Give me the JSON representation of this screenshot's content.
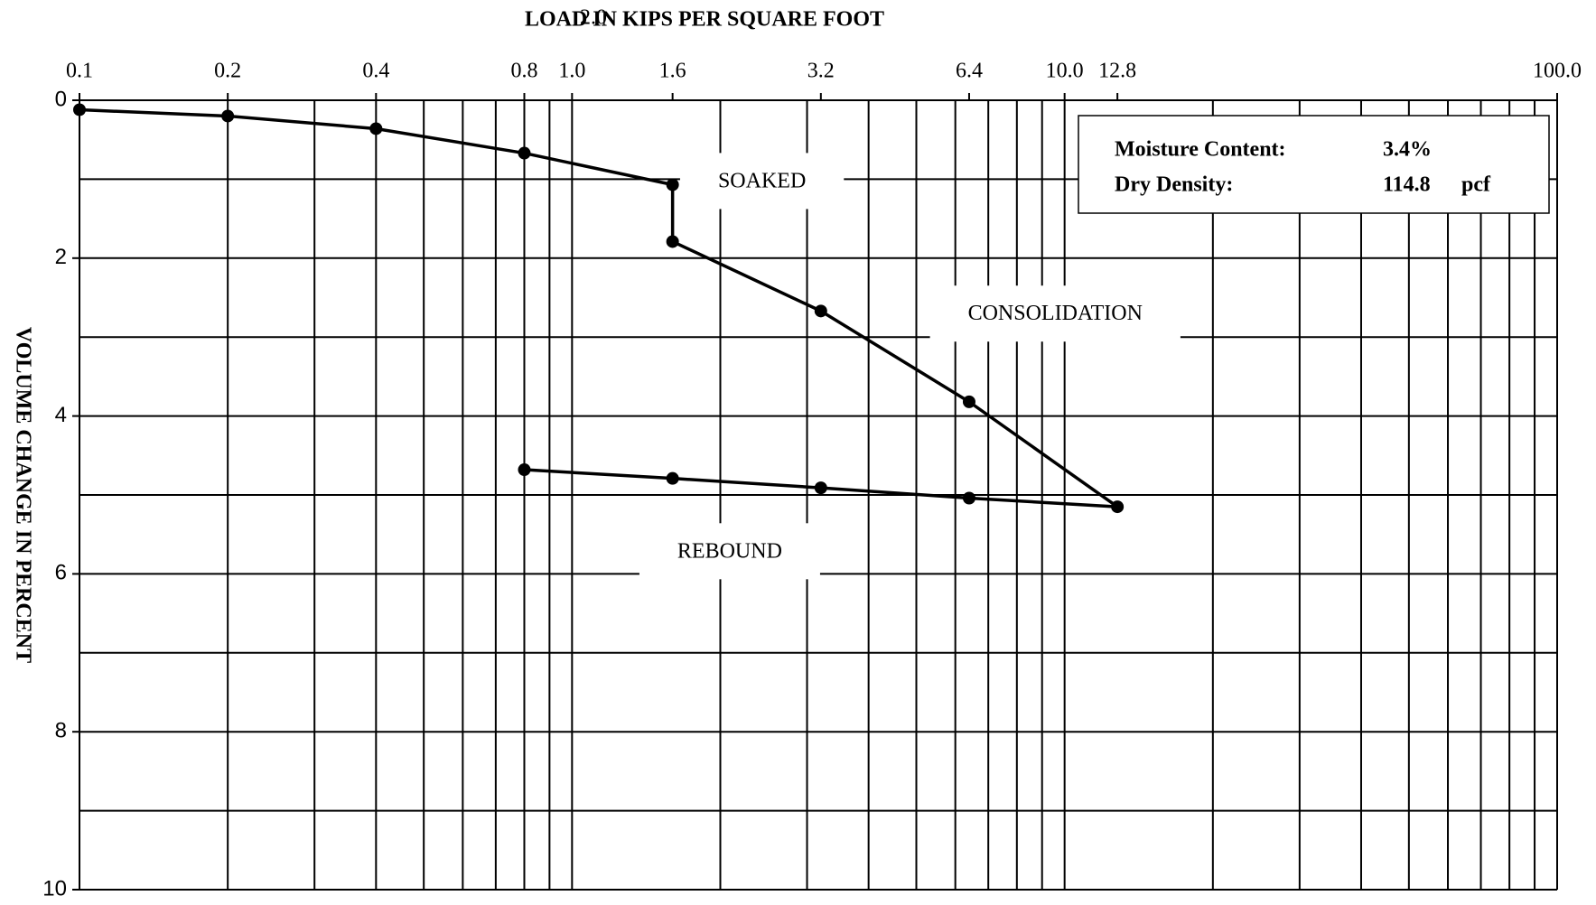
{
  "chart_data": {
    "type": "line",
    "title": "LOAD IN KIPS PER SQUARE FOOT",
    "title_note": "2.0",
    "y_label": "VOLUME CHANGE IN PERCENT",
    "xscale": "log",
    "xlim": [
      0.1,
      100
    ],
    "ylim": [
      0,
      10
    ],
    "y_inverted": true,
    "xticks": [
      0.1,
      0.2,
      0.4,
      0.8,
      {
        "value": 1,
        "label": "1.0"
      },
      1.6,
      3.2,
      6.4,
      {
        "value": 10,
        "label": "10.0"
      },
      12.8,
      {
        "value": 100,
        "label": "100.0"
      }
    ],
    "xgrid": [
      0.1,
      0.2,
      0.3,
      0.4,
      0.5,
      0.6,
      0.7,
      0.8,
      0.9,
      1,
      2,
      3,
      4,
      5,
      6,
      7,
      8,
      9,
      10,
      20,
      30,
      40,
      50,
      60,
      70,
      80,
      90,
      100
    ],
    "yticks": [
      0,
      2,
      4,
      6,
      8,
      10
    ],
    "ygrid": [
      0,
      1,
      2,
      3,
      4,
      5,
      6,
      7,
      8,
      9,
      10
    ],
    "grid": true,
    "series": [
      {
        "color": "#000000",
        "x": [
          0.1,
          0.2,
          0.4,
          0.8,
          1.6,
          1.6,
          3.2,
          6.4,
          12.8,
          6.4,
          3.2,
          1.6,
          0.8
        ],
        "values": [
          0.12,
          0.2,
          0.36,
          0.67,
          1.07,
          1.79,
          2.67,
          3.82,
          5.15,
          5.04,
          4.91,
          4.79,
          4.68
        ]
      }
    ],
    "annotations": [
      {
        "text": "SOAKED",
        "x": 2.43,
        "y": 1.04
      },
      {
        "text": "CONSOLIDATION",
        "x": 9.57,
        "y": 2.72
      },
      {
        "text": "REBOUND",
        "x": 2.09,
        "y": 5.73
      }
    ],
    "info_box": [
      {
        "label": "Moisture Content:",
        "value": "3.4%"
      },
      {
        "label": "Dry Density:",
        "value": "114.8",
        "unit": "pcf"
      }
    ]
  }
}
